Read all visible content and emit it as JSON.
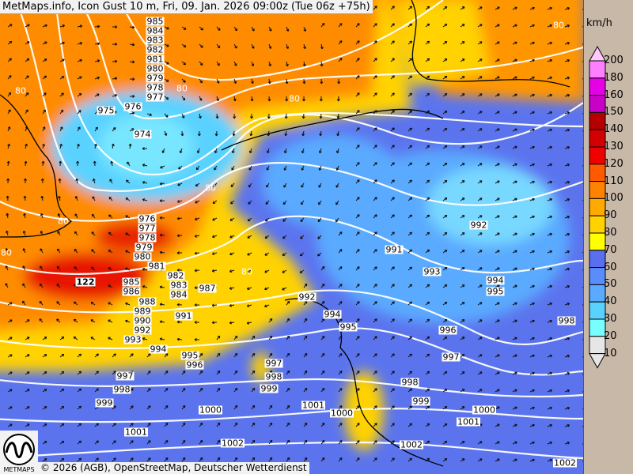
{
  "title": "MetMaps.info, Icon Gust 10 m, Fri, 09. Jan. 2026 09:00z (Tue 06z +75h)",
  "credit": "© 2026 (AGB), OpenStreetMap, Deutscher Wetterdienst",
  "logo_text": "METMAPS",
  "legend": {
    "unit": "km/h",
    "levels": [
      {
        "value": "200",
        "color": "#ffc8ff"
      },
      {
        "value": "180",
        "color": "#ff80ff"
      },
      {
        "value": "160",
        "color": "#e600e6"
      },
      {
        "value": "150",
        "color": "#c800c8"
      },
      {
        "value": "140",
        "color": "#b40000"
      },
      {
        "value": "130",
        "color": "#d20000"
      },
      {
        "value": "120",
        "color": "#f00000"
      },
      {
        "value": "110",
        "color": "#ff5a00"
      },
      {
        "value": "100",
        "color": "#ff8200"
      },
      {
        "value": "90",
        "color": "#ffaa00"
      },
      {
        "value": "80",
        "color": "#ffd200"
      },
      {
        "value": "70",
        "color": "#ffff00"
      },
      {
        "value": "60",
        "color": "#5a6ef0"
      },
      {
        "value": "50",
        "color": "#5a8cfa"
      },
      {
        "value": "40",
        "color": "#5aaaff"
      },
      {
        "value": "30",
        "color": "#5ad2ff"
      },
      {
        "value": "20",
        "color": "#78ffff"
      },
      {
        "value": "10",
        "color": "#e6e6e6"
      }
    ]
  },
  "isobar_labels": [
    "985",
    "984",
    "983",
    "982",
    "981",
    "980",
    "979",
    "978",
    "977",
    "976",
    "975",
    "974",
    "976",
    "977",
    "978",
    "979",
    "980",
    "981",
    "982",
    "983",
    "984",
    "985",
    "986",
    "987",
    "988",
    "989",
    "990",
    "991",
    "992",
    "993",
    "994",
    "995",
    "996",
    "997",
    "998",
    "999",
    "1000",
    "1001",
    "1002",
    "992",
    "994",
    "995",
    "997",
    "998",
    "999",
    "1001",
    "1000",
    "991",
    "993",
    "992",
    "994",
    "995",
    "996",
    "997",
    "998",
    "998",
    "999",
    "1000",
    "1001",
    "1002",
    "1002"
  ],
  "gust_labels": [
    "80",
    "80",
    "80",
    "80",
    "80",
    "80",
    "80",
    "80",
    "122"
  ]
}
